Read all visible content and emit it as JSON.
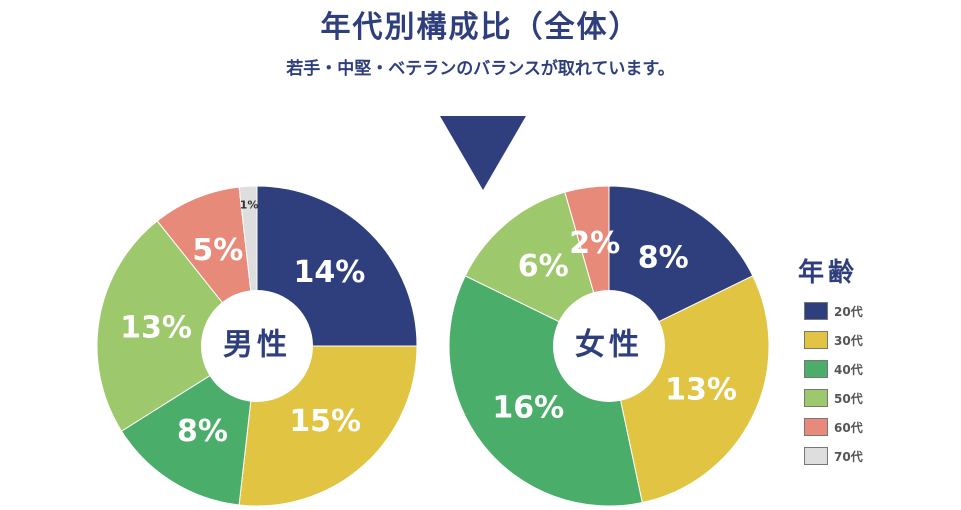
{
  "header": {
    "title": "年代別構成比（全体）",
    "subtitle": "若手・中堅・ベテランのバランスが取れています。"
  },
  "colors": {
    "navy": "#2f3f7e",
    "gold": "#e0c442",
    "green": "#4aad6a",
    "light_green": "#9dc86c",
    "salmon": "#e88a79",
    "gray": "#dedede"
  },
  "legend": {
    "title": "年齢",
    "items": [
      {
        "label": "20代",
        "color": "#2f3f7e"
      },
      {
        "label": "30代",
        "color": "#e0c442"
      },
      {
        "label": "40代",
        "color": "#4aad6a"
      },
      {
        "label": "50代",
        "color": "#9dc86c"
      },
      {
        "label": "60代",
        "color": "#e88a79"
      },
      {
        "label": "70代",
        "color": "#dedede"
      }
    ]
  },
  "chart_data": [
    {
      "type": "pie",
      "center_label": "男性",
      "categories": [
        "20代",
        "30代",
        "40代",
        "50代",
        "60代",
        "70代"
      ],
      "values": [
        14,
        15,
        8,
        13,
        5,
        1
      ],
      "labels": [
        "14%",
        "15%",
        "8%",
        "13%",
        "5%",
        "1%"
      ]
    },
    {
      "type": "pie",
      "center_label": "女性",
      "categories": [
        "20代",
        "30代",
        "40代",
        "50代",
        "60代"
      ],
      "values": [
        8,
        13,
        16,
        6,
        2
      ],
      "labels": [
        "8%",
        "13%",
        "16%",
        "6%",
        "2%"
      ]
    }
  ]
}
